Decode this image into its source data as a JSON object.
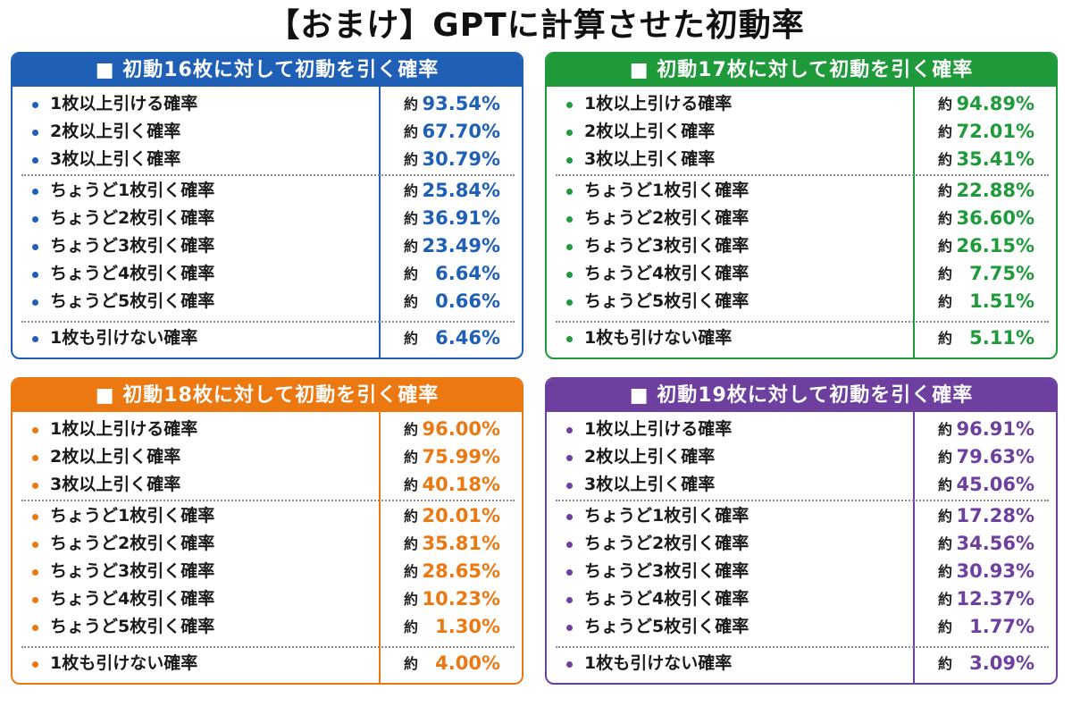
{
  "title": "【おまけ】GPTに計算させた初動率",
  "approx_label": "約",
  "panels": [
    {
      "id": "16",
      "header": "■ 初動16枚に対して初動を引く確率",
      "color": "#1f5fb5",
      "groups": [
        [
          {
            "label": "1枚以上引ける確率",
            "value": "93.54%"
          },
          {
            "label": "2枚以上引く確率",
            "value": "67.70%"
          },
          {
            "label": "3枚以上引く確率",
            "value": "30.79%"
          }
        ],
        [
          {
            "label": "ちょうど1枚引く確率",
            "value": "25.84%"
          },
          {
            "label": "ちょうど2枚引く確率",
            "value": "36.91%"
          },
          {
            "label": "ちょうど3枚引く確率",
            "value": "23.49%"
          },
          {
            "label": "ちょうど4枚引く確率",
            "value": "6.64%"
          },
          {
            "label": "ちょうど5枚引く確率",
            "value": "0.66%"
          }
        ],
        [
          {
            "label": "1枚も引けない確率",
            "value": "6.46%"
          }
        ]
      ]
    },
    {
      "id": "17",
      "header": "■ 初動17枚に対して初動を引く確率",
      "color": "#1e9a3a",
      "groups": [
        [
          {
            "label": "1枚以上引ける確率",
            "value": "94.89%"
          },
          {
            "label": "2枚以上引く確率",
            "value": "72.01%"
          },
          {
            "label": "3枚以上引く確率",
            "value": "35.41%"
          }
        ],
        [
          {
            "label": "ちょうど1枚引く確率",
            "value": "22.88%"
          },
          {
            "label": "ちょうど2枚引く確率",
            "value": "36.60%"
          },
          {
            "label": "ちょうど3枚引く確率",
            "value": "26.15%"
          },
          {
            "label": "ちょうど4枚引く確率",
            "value": "7.75%"
          },
          {
            "label": "ちょうど5枚引く確率",
            "value": "1.51%"
          }
        ],
        [
          {
            "label": "1枚も引けない確率",
            "value": "5.11%"
          }
        ]
      ]
    },
    {
      "id": "18",
      "header": "■ 初動18枚に対して初動を引く確率",
      "color": "#ec7812",
      "groups": [
        [
          {
            "label": "1枚以上引ける確率",
            "value": "96.00%"
          },
          {
            "label": "2枚以上引く確率",
            "value": "75.99%"
          },
          {
            "label": "3枚以上引く確率",
            "value": "40.18%"
          }
        ],
        [
          {
            "label": "ちょうど1枚引く確率",
            "value": "20.01%"
          },
          {
            "label": "ちょうど2枚引く確率",
            "value": "35.81%"
          },
          {
            "label": "ちょうど3枚引く確率",
            "value": "28.65%"
          },
          {
            "label": "ちょうど4枚引く確率",
            "value": "10.23%"
          },
          {
            "label": "ちょうど5枚引く確率",
            "value": "1.30%"
          }
        ],
        [
          {
            "label": "1枚も引けない確率",
            "value": "4.00%"
          }
        ]
      ]
    },
    {
      "id": "19",
      "header": "■ 初動19枚に対して初動を引く確率",
      "color": "#6d3f9e",
      "groups": [
        [
          {
            "label": "1枚以上引ける確率",
            "value": "96.91%"
          },
          {
            "label": "2枚以上引く確率",
            "value": "79.63%"
          },
          {
            "label": "3枚以上引く確率",
            "value": "45.06%"
          }
        ],
        [
          {
            "label": "ちょうど1枚引く確率",
            "value": "17.28%"
          },
          {
            "label": "ちょうど2枚引く確率",
            "value": "34.56%"
          },
          {
            "label": "ちょうど3枚引く確率",
            "value": "30.93%"
          },
          {
            "label": "ちょうど4枚引く確率",
            "value": "12.37%"
          },
          {
            "label": "ちょうど5枚引く確率",
            "value": "1.77%"
          }
        ],
        [
          {
            "label": "1枚も引けない確率",
            "value": "3.09%"
          }
        ]
      ]
    }
  ]
}
